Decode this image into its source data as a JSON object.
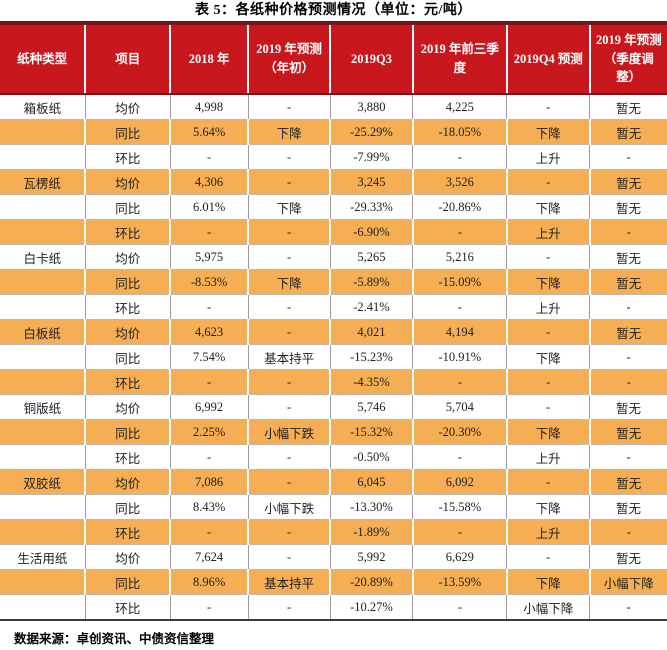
{
  "title": "表 5：各纸种价格预测情况（单位：元/吨）",
  "source_note": "数据来源：卓创资讯、中债资信整理",
  "colors": {
    "header_bg": "#C8181E",
    "header_text": "#FFFFFF",
    "stripe_orange": "#F5AE53",
    "border_dark_red": "#7A1418",
    "bottom_border": "#3C3C3C",
    "body_text": "#1E1E1E"
  },
  "table": {
    "columns": [
      "纸种类型",
      "项目",
      "2018 年",
      "2019 年预测（年初）",
      "2019Q3",
      "2019 年前三季度",
      "2019Q4 预测",
      "2019 年预测（季度调整）"
    ],
    "groups": [
      {
        "type": "箱板纸",
        "rows": [
          {
            "item": "均价",
            "values": [
              "4,998",
              "-",
              "3,880",
              "4,225",
              "-",
              "暂无"
            ]
          },
          {
            "item": "同比",
            "values": [
              "5.64%",
              "下降",
              "-25.29%",
              "-18.05%",
              "下降",
              "暂无"
            ]
          },
          {
            "item": "环比",
            "values": [
              "-",
              "-",
              "-7.99%",
              "-",
              "上升",
              "-"
            ]
          }
        ]
      },
      {
        "type": "瓦楞纸",
        "rows": [
          {
            "item": "均价",
            "values": [
              "4,306",
              "-",
              "3,245",
              "3,526",
              "-",
              "暂无"
            ]
          },
          {
            "item": "同比",
            "values": [
              "6.01%",
              "下降",
              "-29.33%",
              "-20.86%",
              "下降",
              "暂无"
            ]
          },
          {
            "item": "环比",
            "values": [
              "-",
              "-",
              "-6.90%",
              "-",
              "上升",
              "-"
            ]
          }
        ]
      },
      {
        "type": "白卡纸",
        "rows": [
          {
            "item": "均价",
            "values": [
              "5,975",
              "-",
              "5,265",
              "5,216",
              "-",
              "暂无"
            ]
          },
          {
            "item": "同比",
            "values": [
              "-8.53%",
              "下降",
              "-5.89%",
              "-15.09%",
              "下降",
              "暂无"
            ]
          },
          {
            "item": "环比",
            "values": [
              "-",
              "-",
              "-2.41%",
              "-",
              "上升",
              "-"
            ]
          }
        ]
      },
      {
        "type": "白板纸",
        "rows": [
          {
            "item": "均价",
            "values": [
              "4,623",
              "-",
              "4,021",
              "4,194",
              "-",
              "暂无"
            ]
          },
          {
            "item": "同比",
            "values": [
              "7.54%",
              "基本持平",
              "-15.23%",
              "-10.91%",
              "下降",
              "-"
            ]
          },
          {
            "item": "环比",
            "values": [
              "-",
              "-",
              "-4.35%",
              "-",
              "-",
              "-"
            ]
          }
        ]
      },
      {
        "type": "铜版纸",
        "rows": [
          {
            "item": "均价",
            "values": [
              "6,992",
              "-",
              "5,746",
              "5,704",
              "-",
              "暂无"
            ]
          },
          {
            "item": "同比",
            "values": [
              "2.25%",
              "小幅下跌",
              "-15.32%",
              "-20.30%",
              "下降",
              "暂无"
            ]
          },
          {
            "item": "环比",
            "values": [
              "-",
              "-",
              "-0.50%",
              "-",
              "上升",
              "-"
            ]
          }
        ]
      },
      {
        "type": "双胶纸",
        "rows": [
          {
            "item": "均价",
            "values": [
              "7,086",
              "-",
              "6,045",
              "6,092",
              "-",
              "暂无"
            ]
          },
          {
            "item": "同比",
            "values": [
              "8.43%",
              "小幅下跌",
              "-13.30%",
              "-15.58%",
              "下降",
              "暂无"
            ]
          },
          {
            "item": "环比",
            "values": [
              "-",
              "-",
              "-1.89%",
              "-",
              "上升",
              "-"
            ]
          }
        ]
      },
      {
        "type": "生活用纸",
        "rows": [
          {
            "item": "均价",
            "values": [
              "7,624",
              "-",
              "5,992",
              "6,629",
              "-",
              "暂无"
            ]
          },
          {
            "item": "同比",
            "values": [
              "8.96%",
              "基本持平",
              "-20.89%",
              "-13.59%",
              "下降",
              "小幅下降"
            ]
          },
          {
            "item": "环比",
            "values": [
              "-",
              "-",
              "-10.27%",
              "-",
              "小幅下降",
              "-"
            ]
          }
        ]
      }
    ]
  }
}
